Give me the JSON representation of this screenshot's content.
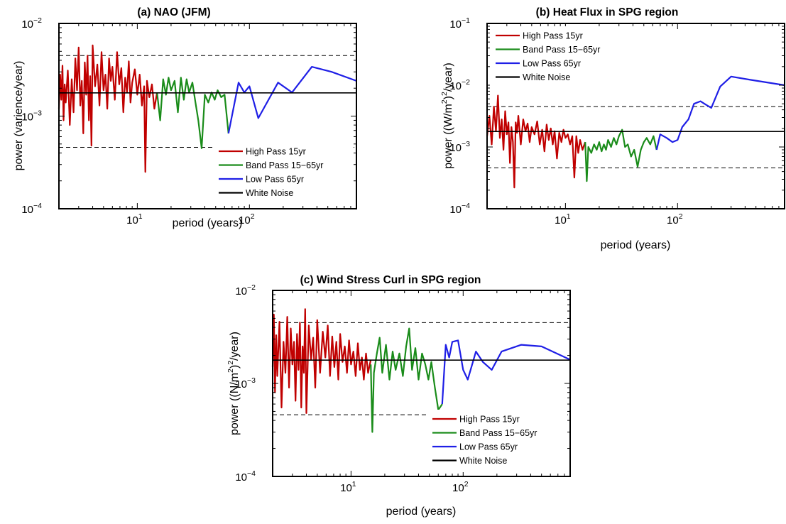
{
  "colors": {
    "high_pass": "#c00000",
    "band_pass": "#1a8c1a",
    "low_pass": "#1f1fe6",
    "white_noise": "#000000",
    "confidence": "#000000"
  },
  "chart_data": [
    {
      "type": "line",
      "title": "(a) NAO (JFM)",
      "xlabel": "period (years)",
      "ylabel": "power (varience/year)",
      "xscale": "log",
      "yscale": "log",
      "xlim": [
        2,
        900
      ],
      "ylim": [
        0.0001,
        0.01
      ],
      "xticks": [
        {
          "base": "10",
          "exp": "1"
        },
        {
          "base": "10",
          "exp": "2"
        }
      ],
      "yticks": [
        {
          "base": "10",
          "exp": "−4"
        },
        {
          "base": "10",
          "exp": "−3"
        },
        {
          "base": "10",
          "exp": "−2"
        }
      ],
      "legend_placement": "lower-right",
      "white_noise": 0.00178,
      "confidence_bounds": [
        0.00046,
        0.0045
      ],
      "series": [
        {
          "name": "High Pass 15yr",
          "color_key": "high_pass",
          "x": [
            2.0,
            2.05,
            2.1,
            2.15,
            2.2,
            2.25,
            2.3,
            2.4,
            2.5,
            2.6,
            2.7,
            2.8,
            2.9,
            3.0,
            3.1,
            3.2,
            3.3,
            3.4,
            3.5,
            3.6,
            3.7,
            3.8,
            3.9,
            4.0,
            4.2,
            4.4,
            4.6,
            4.8,
            5.0,
            5.2,
            5.4,
            5.6,
            5.8,
            6.0,
            6.3,
            6.6,
            6.9,
            7.2,
            7.5,
            7.8,
            8.1,
            8.4,
            8.7,
            9.0,
            9.5,
            10.0,
            10.5,
            11.0,
            11.5,
            11.8,
            12.2,
            12.8,
            13.5,
            14.2,
            15.0
          ],
          "values": [
            0.0012,
            0.0028,
            0.0015,
            0.0035,
            0.0009,
            0.0022,
            0.0014,
            0.0031,
            0.0008,
            0.0025,
            0.0011,
            0.0042,
            0.0019,
            0.0055,
            0.0013,
            0.0024,
            0.00065,
            0.0038,
            0.0017,
            0.0045,
            0.0009,
            0.0027,
            0.00048,
            0.0058,
            0.0021,
            0.0036,
            0.0013,
            0.0049,
            0.0019,
            0.0028,
            0.0012,
            0.0042,
            0.0024,
            0.0034,
            0.0015,
            0.0049,
            0.0022,
            0.0033,
            0.0011,
            0.0026,
            0.0018,
            0.0039,
            0.0014,
            0.0023,
            0.0032,
            0.0017,
            0.0028,
            0.0013,
            0.0021,
            0.00025,
            0.0024,
            0.0016,
            0.0022,
            0.0012,
            0.0018
          ]
        },
        {
          "name": "Band Pass 15−65yr",
          "color_key": "band_pass",
          "x": [
            15.0,
            16.0,
            17.0,
            18.0,
            19.0,
            20.0,
            21.5,
            23.0,
            24.5,
            26.0,
            27.5,
            29.0,
            31.0,
            33.0,
            35.0,
            37.5,
            40.0,
            43.0,
            46.0,
            49.0,
            52.0,
            56.0,
            60.0,
            65.0
          ],
          "values": [
            0.0018,
            0.0009,
            0.0025,
            0.0017,
            0.0026,
            0.0019,
            0.0024,
            0.0011,
            0.0026,
            0.0015,
            0.0025,
            0.0018,
            0.0023,
            0.0014,
            0.0009,
            0.00045,
            0.0017,
            0.0014,
            0.0018,
            0.0015,
            0.0019,
            0.0016,
            0.0017,
            0.00065
          ]
        },
        {
          "name": "Low Pass 65yr",
          "color_key": "low_pass",
          "x": [
            65.0,
            80.0,
            90.0,
            100.0,
            120.0,
            180.0,
            240.0,
            360.0,
            540.0,
            900.0
          ],
          "values": [
            0.00065,
            0.0023,
            0.0018,
            0.0021,
            0.00095,
            0.0023,
            0.0018,
            0.0034,
            0.003,
            0.0024
          ]
        }
      ]
    },
    {
      "type": "line",
      "title": "(b) Heat Flux in SPG region",
      "xlabel": "period (years)",
      "ylabel_pre": "power ((W/m",
      "ylabel_sup": "2",
      "ylabel_mid": ")",
      "ylabel_sup2": "2",
      "ylabel_post": "/year)",
      "xscale": "log",
      "yscale": "log",
      "xlim": [
        2,
        900
      ],
      "ylim": [
        0.0001,
        0.1
      ],
      "xticks": [
        {
          "base": "10",
          "exp": "1"
        },
        {
          "base": "10",
          "exp": "2"
        }
      ],
      "yticks": [
        {
          "base": "10",
          "exp": "−4"
        },
        {
          "base": "10",
          "exp": "−3"
        },
        {
          "base": "10",
          "exp": "−2"
        },
        {
          "base": "10",
          "exp": "−1"
        }
      ],
      "legend_placement": "top-left",
      "white_noise": 0.00178,
      "confidence_bounds": [
        0.00046,
        0.0045
      ],
      "series": [
        {
          "name": "High Pass 15yr",
          "color_key": "high_pass",
          "x": [
            2.0,
            2.1,
            2.2,
            2.3,
            2.4,
            2.5,
            2.6,
            2.7,
            2.8,
            2.9,
            3.0,
            3.1,
            3.2,
            3.3,
            3.4,
            3.5,
            3.6,
            3.7,
            3.8,
            4.0,
            4.2,
            4.4,
            4.6,
            4.8,
            5.0,
            5.3,
            5.6,
            5.9,
            6.2,
            6.5,
            6.8,
            7.1,
            7.4,
            7.7,
            8.0,
            8.4,
            8.8,
            9.2,
            9.6,
            10.0,
            10.5,
            11.0,
            11.5,
            12.0,
            12.5,
            13.0,
            13.5,
            14.2,
            15.0
          ],
          "values": [
            0.0015,
            0.0032,
            0.0011,
            0.0045,
            0.0018,
            0.0068,
            0.0014,
            0.0028,
            0.0009,
            0.0038,
            0.0016,
            0.0025,
            0.00055,
            0.0021,
            0.0012,
            0.00022,
            0.0025,
            0.0017,
            0.0032,
            0.0011,
            0.0028,
            0.0018,
            0.0024,
            0.0012,
            0.0021,
            0.0016,
            0.0026,
            0.0011,
            0.0019,
            0.00085,
            0.0023,
            0.0013,
            0.002,
            0.0011,
            0.0018,
            0.00065,
            0.0017,
            0.0012,
            0.0019,
            0.0014,
            0.0016,
            0.0011,
            0.0015,
            0.00032,
            0.0015,
            0.0008,
            0.0013,
            0.0009,
            0.0012
          ]
        },
        {
          "name": "Band Pass 15−65yr",
          "color_key": "band_pass",
          "x": [
            15.0,
            15.5,
            16.0,
            17.0,
            18.0,
            19.0,
            20.0,
            21.0,
            22.0,
            23.0,
            24.0,
            25.5,
            27.0,
            28.5,
            30.0,
            32.0,
            34.0,
            36.0,
            38.5,
            41.0,
            44.0,
            47.0,
            50.0,
            53.0,
            57.0,
            61.0,
            65.0
          ],
          "values": [
            0.0012,
            0.00028,
            0.001,
            0.0008,
            0.0011,
            0.0009,
            0.0012,
            0.00085,
            0.0011,
            0.0009,
            0.0013,
            0.001,
            0.0014,
            0.0011,
            0.0015,
            0.0019,
            0.001,
            0.0011,
            0.0007,
            0.0009,
            0.00048,
            0.0009,
            0.0012,
            0.0014,
            0.0011,
            0.0015,
            0.0009
          ]
        },
        {
          "name": "Low Pass 65yr",
          "color_key": "low_pass",
          "x": [
            65.0,
            70.0,
            80.0,
            90.0,
            100.0,
            110.0,
            125.0,
            140.0,
            160.0,
            180.0,
            200.0,
            240.0,
            300.0,
            450.0,
            900.0
          ],
          "values": [
            0.0009,
            0.0016,
            0.0014,
            0.0012,
            0.0013,
            0.0021,
            0.0028,
            0.005,
            0.0055,
            0.0048,
            0.0043,
            0.0095,
            0.0138,
            0.0122,
            0.01
          ]
        }
      ]
    },
    {
      "type": "line",
      "title": "(c) Wind Stress Curl in SPG region",
      "xlabel": "period (years)",
      "ylabel_pre": "power ((N/m",
      "ylabel_sup": "2",
      "ylabel_mid": ")",
      "ylabel_sup2": "2",
      "ylabel_post": "/year)",
      "xscale": "log",
      "yscale": "log",
      "xlim": [
        2,
        900
      ],
      "ylim": [
        0.0001,
        0.01
      ],
      "xticks": [
        {
          "base": "10",
          "exp": "1"
        },
        {
          "base": "10",
          "exp": "2"
        }
      ],
      "yticks": [
        {
          "base": "10",
          "exp": "−4"
        },
        {
          "base": "10",
          "exp": "−3"
        },
        {
          "base": "10",
          "exp": "−2"
        }
      ],
      "legend_placement": "lower-right",
      "white_noise": 0.00178,
      "confidence_bounds": [
        0.00046,
        0.0045
      ],
      "series": [
        {
          "name": "High Pass 15yr",
          "color_key": "high_pass",
          "x": [
            2.0,
            2.05,
            2.1,
            2.15,
            2.2,
            2.3,
            2.4,
            2.5,
            2.6,
            2.7,
            2.8,
            2.9,
            3.0,
            3.1,
            3.2,
            3.3,
            3.4,
            3.5,
            3.6,
            3.7,
            3.8,
            3.9,
            4.0,
            4.2,
            4.4,
            4.6,
            4.8,
            5.0,
            5.3,
            5.6,
            5.9,
            6.2,
            6.5,
            6.8,
            7.1,
            7.4,
            7.7,
            8.0,
            8.4,
            8.8,
            9.2,
            9.6,
            10.0,
            10.5,
            11.0,
            11.5,
            12.0,
            12.5,
            13.0,
            13.6,
            14.2,
            15.0
          ],
          "values": [
            0.0015,
            0.0055,
            0.0008,
            0.0033,
            0.0012,
            0.0046,
            0.00055,
            0.0028,
            0.0013,
            0.0052,
            0.0009,
            0.0039,
            0.0016,
            0.0028,
            0.00065,
            0.0034,
            0.0014,
            0.0045,
            0.00055,
            0.0025,
            0.0013,
            0.0063,
            0.00048,
            0.0042,
            0.0018,
            0.0031,
            0.0009,
            0.0048,
            0.0013,
            0.0036,
            0.0019,
            0.0042,
            0.0012,
            0.0032,
            0.0015,
            0.0028,
            0.0011,
            0.0034,
            0.0017,
            0.0025,
            0.0013,
            0.0029,
            0.0016,
            0.0022,
            0.0012,
            0.0027,
            0.0014,
            0.0019,
            0.0011,
            0.0021,
            0.0013,
            0.0018
          ]
        },
        {
          "name": "Band Pass 15−65yr",
          "color_key": "band_pass",
          "x": [
            15.0,
            15.5,
            16.0,
            17.0,
            18.0,
            19.0,
            20.5,
            22.0,
            23.5,
            25.0,
            27.0,
            29.0,
            31.0,
            33.0,
            35.0,
            37.5,
            40.0,
            43.0,
            46.0,
            49.0,
            52.0,
            56.0,
            60.0,
            65.0
          ],
          "values": [
            0.0016,
            0.0003,
            0.0013,
            0.0021,
            0.0031,
            0.0013,
            0.0026,
            0.0011,
            0.0022,
            0.0014,
            0.0021,
            0.0012,
            0.0025,
            0.0039,
            0.0014,
            0.0024,
            0.0011,
            0.0021,
            0.0016,
            0.0011,
            0.0017,
            0.0009,
            0.00052,
            0.0006
          ]
        },
        {
          "name": "Low Pass 65yr",
          "color_key": "low_pass",
          "x": [
            65.0,
            70.0,
            75.0,
            80.0,
            90.0,
            100.0,
            110.0,
            130.0,
            150.0,
            180.0,
            220.0,
            330.0,
            500.0,
            900.0
          ],
          "values": [
            0.0006,
            0.0026,
            0.0019,
            0.0028,
            0.0029,
            0.0014,
            0.0011,
            0.0022,
            0.0017,
            0.0014,
            0.0022,
            0.0026,
            0.0025,
            0.0018
          ]
        }
      ]
    }
  ]
}
